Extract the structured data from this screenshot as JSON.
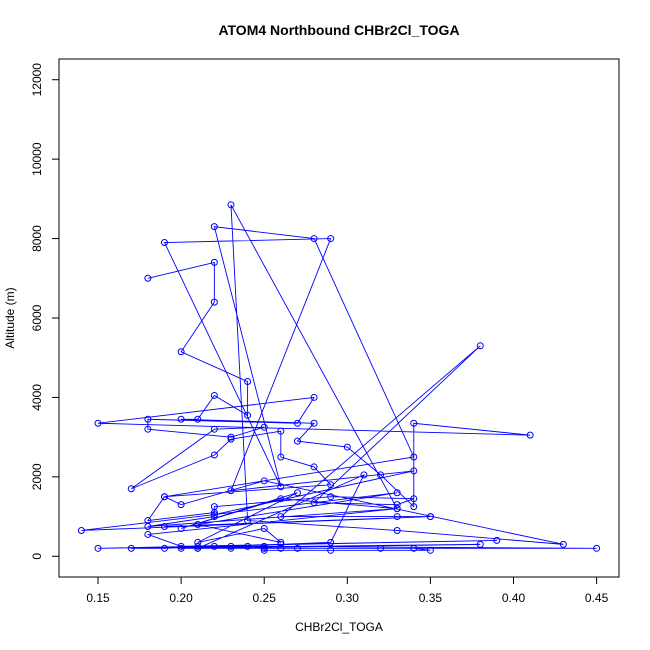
{
  "chart_data": {
    "type": "line",
    "title": "ATOM4 Northbound CHBr2Cl_TOGA",
    "xlabel": "CHBr2Cl_TOGA",
    "ylabel": "Altitude (m)",
    "xlim": [
      0.14,
      0.45
    ],
    "ylim": [
      0,
      12000
    ],
    "xticks": [
      "0.15",
      "0.20",
      "0.25",
      "0.30",
      "0.35",
      "0.40",
      "0.45"
    ],
    "xtick_values": [
      0.15,
      0.2,
      0.25,
      0.3,
      0.35,
      0.4,
      0.45
    ],
    "yticks": [
      "0",
      "2000",
      "4000",
      "6000",
      "8000",
      "10000",
      "12000"
    ],
    "ytick_values": [
      0,
      2000,
      4000,
      6000,
      8000,
      10000,
      12000
    ],
    "grid": false,
    "color": "#0000ff",
    "marker": "open-circle",
    "series": [
      {
        "x": [
          0.18,
          0.22,
          0.22,
          0.2,
          0.24,
          0.24,
          0.22,
          0.21,
          0.2,
          0.28,
          0.27,
          0.3,
          0.32,
          0.34,
          0.34,
          0.41,
          0.15,
          0.28,
          0.27,
          0.18,
          0.18,
          0.23,
          0.25,
          0.22,
          0.17,
          0.22,
          0.23,
          0.26,
          0.26,
          0.28,
          0.29,
          0.19,
          0.18,
          0.22,
          0.22,
          0.29,
          0.34,
          0.33,
          0.28,
          0.38,
          0.26,
          0.33,
          0.35,
          0.19,
          0.35,
          0.14,
          0.33,
          0.21,
          0.26,
          0.25,
          0.21,
          0.27,
          0.2,
          0.26,
          0.33,
          0.18,
          0.22,
          0.22,
          0.34,
          0.23,
          0.29,
          0.19,
          0.26,
          0.22,
          0.28,
          0.34,
          0.19,
          0.2,
          0.25,
          0.43,
          0.33,
          0.24,
          0.23,
          0.33,
          0.18,
          0.2,
          0.39,
          0.15,
          0.25,
          0.45,
          0.21,
          0.31,
          0.29,
          0.23,
          0.26,
          0.21,
          0.24,
          0.26,
          0.32,
          0.25,
          0.21,
          0.38,
          0.17,
          0.19,
          0.22,
          0.23,
          0.25,
          0.2,
          0.27,
          0.34,
          0.35,
          0.25,
          0.29
        ],
        "y": [
          7000,
          7400,
          6400,
          5150,
          4400,
          3550,
          4050,
          3450,
          3450,
          3350,
          2900,
          2750,
          2050,
          1250,
          3350,
          3050,
          3350,
          4000,
          3350,
          3450,
          3200,
          3000,
          3250,
          3200,
          1700,
          2550,
          2950,
          3150,
          2500,
          2250,
          1800,
          1500,
          900,
          1100,
          1250,
          1500,
          1450,
          1300,
          1350,
          5300,
          1000,
          1000,
          1000,
          750,
          1000,
          650,
          1600,
          800,
          350,
          700,
          350,
          1600,
          700,
          1450,
          1200,
          750,
          1000,
          1050,
          2150,
          1650,
          8000,
          7900,
          1750,
          8300,
          8000,
          2500,
          1500,
          1300,
          1900,
          300,
          650,
          900,
          8850,
          1200,
          550,
          250,
          400,
          200,
          250,
          200,
          200,
          2050,
          350,
          250,
          300,
          250,
          250,
          200,
          200,
          200,
          200,
          300,
          200,
          200,
          250,
          200,
          200,
          200,
          200,
          200,
          150,
          150,
          150
        ]
      }
    ]
  }
}
